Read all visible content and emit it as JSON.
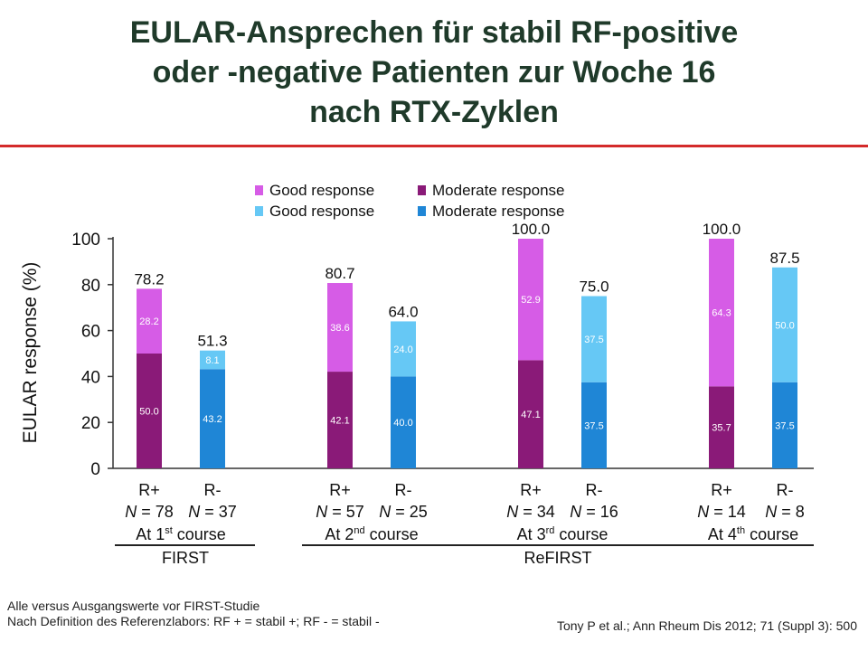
{
  "slide": {
    "title_lines": [
      "EULAR-Ansprechen für stabil RF-positive",
      "oder -negative Patienten zur Woche 16",
      "nach RTX-Zyklen"
    ],
    "footnotes": [
      "Alle versus Ausgangswerte vor FIRST-Studie",
      "Nach Definition des Referenzlabors: RF + = stabil +; RF - = stabil -"
    ],
    "citation": "Tony P et al.; Ann Rheum Dis 2012; 71 (Suppl 3): 500"
  },
  "chart_data": {
    "type": "bar",
    "stacked": true,
    "ylabel": "EULAR response (%)",
    "ylim": [
      0,
      100
    ],
    "yticks": [
      0,
      20,
      40,
      60,
      80,
      100
    ],
    "legend": [
      {
        "label": "Good response",
        "color": "#d65ce6"
      },
      {
        "label": "Moderate response",
        "color": "#8a1a78"
      },
      {
        "label": "Good response",
        "color": "#66c8f5"
      },
      {
        "label": "Moderate response",
        "color": "#1f86d6"
      }
    ],
    "bars": [
      {
        "group": "R+",
        "n_label": "N = 78",
        "moderate": 50.0,
        "good": 28.2,
        "total": "78.2",
        "moderate_color": "#8a1a78",
        "good_color": "#d65ce6",
        "moderate_label": "50.0",
        "good_label": "28.2"
      },
      {
        "group": "R-",
        "n_label": "N = 37",
        "moderate": 43.2,
        "good": 8.1,
        "total": "51.3",
        "moderate_color": "#1f86d6",
        "good_color": "#66c8f5",
        "moderate_label": "43.2",
        "good_label": "8.1"
      },
      {
        "group": "R+",
        "n_label": "N = 57",
        "moderate": 42.1,
        "good": 38.6,
        "total": "80.7",
        "moderate_color": "#8a1a78",
        "good_color": "#d65ce6",
        "moderate_label": "42.1",
        "good_label": "38.6"
      },
      {
        "group": "R-",
        "n_label": "N = 25",
        "moderate": 40.0,
        "good": 24.0,
        "total": "64.0",
        "moderate_color": "#1f86d6",
        "good_color": "#66c8f5",
        "moderate_label": "40.0",
        "good_label": "24.0"
      },
      {
        "group": "R+",
        "n_label": "N = 34",
        "moderate": 47.1,
        "good": 52.9,
        "total": "100.0",
        "moderate_color": "#8a1a78",
        "good_color": "#d65ce6",
        "moderate_label": "47.1",
        "good_label": "52.9"
      },
      {
        "group": "R-",
        "n_label": "N = 16",
        "moderate": 37.5,
        "good": 37.5,
        "total": "75.0",
        "moderate_color": "#1f86d6",
        "good_color": "#66c8f5",
        "moderate_label": "37.5",
        "good_label": "37.5"
      },
      {
        "group": "R+",
        "n_label": "N = 14",
        "moderate": 35.7,
        "good": 64.3,
        "total": "100.0",
        "moderate_color": "#8a1a78",
        "good_color": "#d65ce6",
        "moderate_label": "35.7",
        "good_label": "64.3"
      },
      {
        "group": "R-",
        "n_label": "N = 8",
        "moderate": 37.5,
        "good": 50.0,
        "total": "87.5",
        "moderate_color": "#1f86d6",
        "good_color": "#66c8f5",
        "moderate_label": "37.5",
        "good_label": "50.0"
      }
    ],
    "courses": [
      {
        "prefix": "At 1",
        "sup": "st",
        "suffix": " course"
      },
      {
        "prefix": "At 2",
        "sup": "nd",
        "suffix": " course"
      },
      {
        "prefix": "At 3",
        "sup": "rd",
        "suffix": " course"
      },
      {
        "prefix": "At 4",
        "sup": "th",
        "suffix": " course"
      }
    ],
    "studies": [
      "FIRST",
      "ReFIRST"
    ]
  }
}
